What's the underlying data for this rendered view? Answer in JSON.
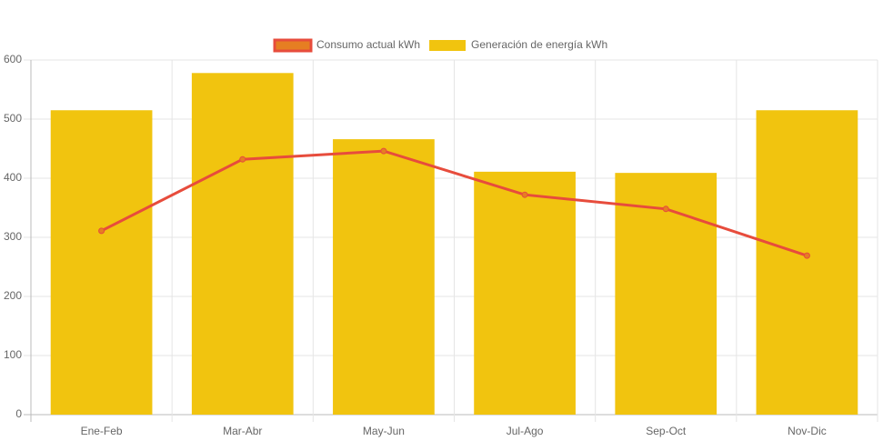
{
  "chart_data": {
    "type": "bar",
    "categories": [
      "Ene-Feb",
      "Mar-Abr",
      "May-Jun",
      "Jul-Ago",
      "Sep-Oct",
      "Nov-Dic"
    ],
    "series": [
      {
        "name": "Consumo actual kWh",
        "type": "line",
        "color": "#e74c3c",
        "point_color": "#e67e22",
        "values": [
          311,
          432,
          446,
          372,
          348,
          269
        ]
      },
      {
        "name": "Generación de energía kWh",
        "type": "bar",
        "color": "#f1c40f",
        "values": [
          515,
          578,
          466,
          411,
          409,
          515
        ]
      }
    ],
    "ylim": [
      0,
      600
    ],
    "yticks": [
      0,
      100,
      200,
      300,
      400,
      500,
      600
    ],
    "grid": true,
    "legend": "top"
  }
}
